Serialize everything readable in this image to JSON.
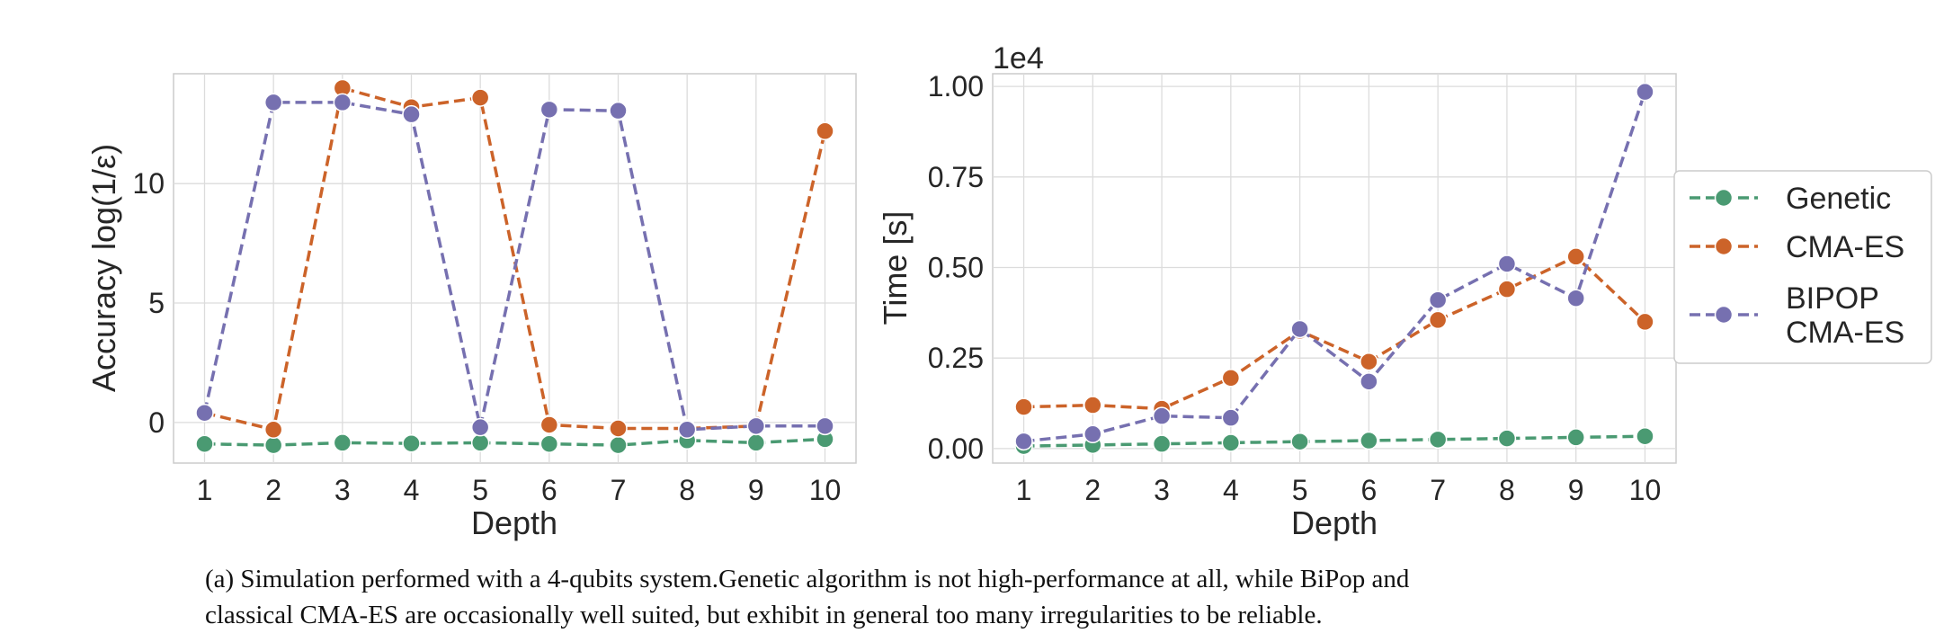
{
  "caption": {
    "line1": "(a) Simulation performed with a 4-qubits system.Genetic algorithm is not high-performance at all, while BiPop and",
    "line2": "classical CMA-ES are occasionally well suited, but exhibit in general too many irregularities to be reliable."
  },
  "legend": {
    "placement": "right, outside plot area",
    "entries": [
      {
        "key": "genetic",
        "lines": [
          "Genetic"
        ]
      },
      {
        "key": "cmaes",
        "lines": [
          "CMA-ES"
        ]
      },
      {
        "key": "bipop",
        "lines": [
          "BIPOP",
          "CMA-ES"
        ]
      }
    ]
  },
  "colors": {
    "genetic": "#4a9a72",
    "cmaes": "#cc6329",
    "bipop": "#7670b0",
    "grid": "#dcdcdc",
    "axes_edge": "#cccccc",
    "text": "#262626"
  },
  "chart_data": [
    {
      "type": "line",
      "xlabel": "Depth",
      "ylabel": "Accuracy log(1/ε)",
      "x": [
        1,
        2,
        3,
        4,
        5,
        6,
        7,
        8,
        9,
        10
      ],
      "xlim": [
        0.55,
        10.45
      ],
      "ylim": [
        -1.7,
        14.6
      ],
      "yticks": [
        {
          "v": 0,
          "label": "0"
        },
        {
          "v": 5,
          "label": "5"
        },
        {
          "v": 10,
          "label": "10"
        }
      ],
      "grid": true,
      "series": [
        {
          "key": "genetic",
          "name": "Genetic",
          "values": [
            -0.9,
            -0.95,
            -0.85,
            -0.88,
            -0.85,
            -0.9,
            -0.95,
            -0.75,
            -0.85,
            -0.7
          ]
        },
        {
          "key": "cmaes",
          "name": "CMA-ES",
          "values": [
            0.4,
            -0.3,
            14.0,
            13.2,
            13.6,
            -0.1,
            -0.25,
            -0.25,
            -0.15,
            12.2
          ]
        },
        {
          "key": "bipop",
          "name": "BIPOP CMA-ES",
          "values": [
            0.4,
            13.4,
            13.4,
            12.9,
            -0.2,
            13.1,
            13.05,
            -0.3,
            -0.15,
            -0.15
          ]
        }
      ]
    },
    {
      "type": "line",
      "xlabel": "Depth",
      "ylabel": "Time [s]",
      "offset_text": "1e4",
      "x": [
        1,
        2,
        3,
        4,
        5,
        6,
        7,
        8,
        9,
        10
      ],
      "xlim": [
        0.55,
        10.45
      ],
      "ylim": [
        -0.04,
        1.035
      ],
      "yticks": [
        {
          "v": 0,
          "label": "0.00"
        },
        {
          "v": 0.25,
          "label": "0.25"
        },
        {
          "v": 0.5,
          "label": "0.50"
        },
        {
          "v": 0.75,
          "label": "0.75"
        },
        {
          "v": 1.0,
          "label": "1.00"
        }
      ],
      "grid": true,
      "series": [
        {
          "key": "genetic",
          "name": "Genetic",
          "values": [
            0.007,
            0.01,
            0.013,
            0.016,
            0.019,
            0.022,
            0.025,
            0.028,
            0.031,
            0.034
          ]
        },
        {
          "key": "cmaes",
          "name": "CMA-ES",
          "values": [
            0.115,
            0.12,
            0.11,
            0.195,
            0.325,
            0.24,
            0.355,
            0.44,
            0.53,
            0.35
          ]
        },
        {
          "key": "bipop",
          "name": "BIPOP CMA-ES",
          "values": [
            0.02,
            0.04,
            0.09,
            0.085,
            0.33,
            0.185,
            0.41,
            0.51,
            0.415,
            0.985
          ]
        }
      ]
    }
  ]
}
